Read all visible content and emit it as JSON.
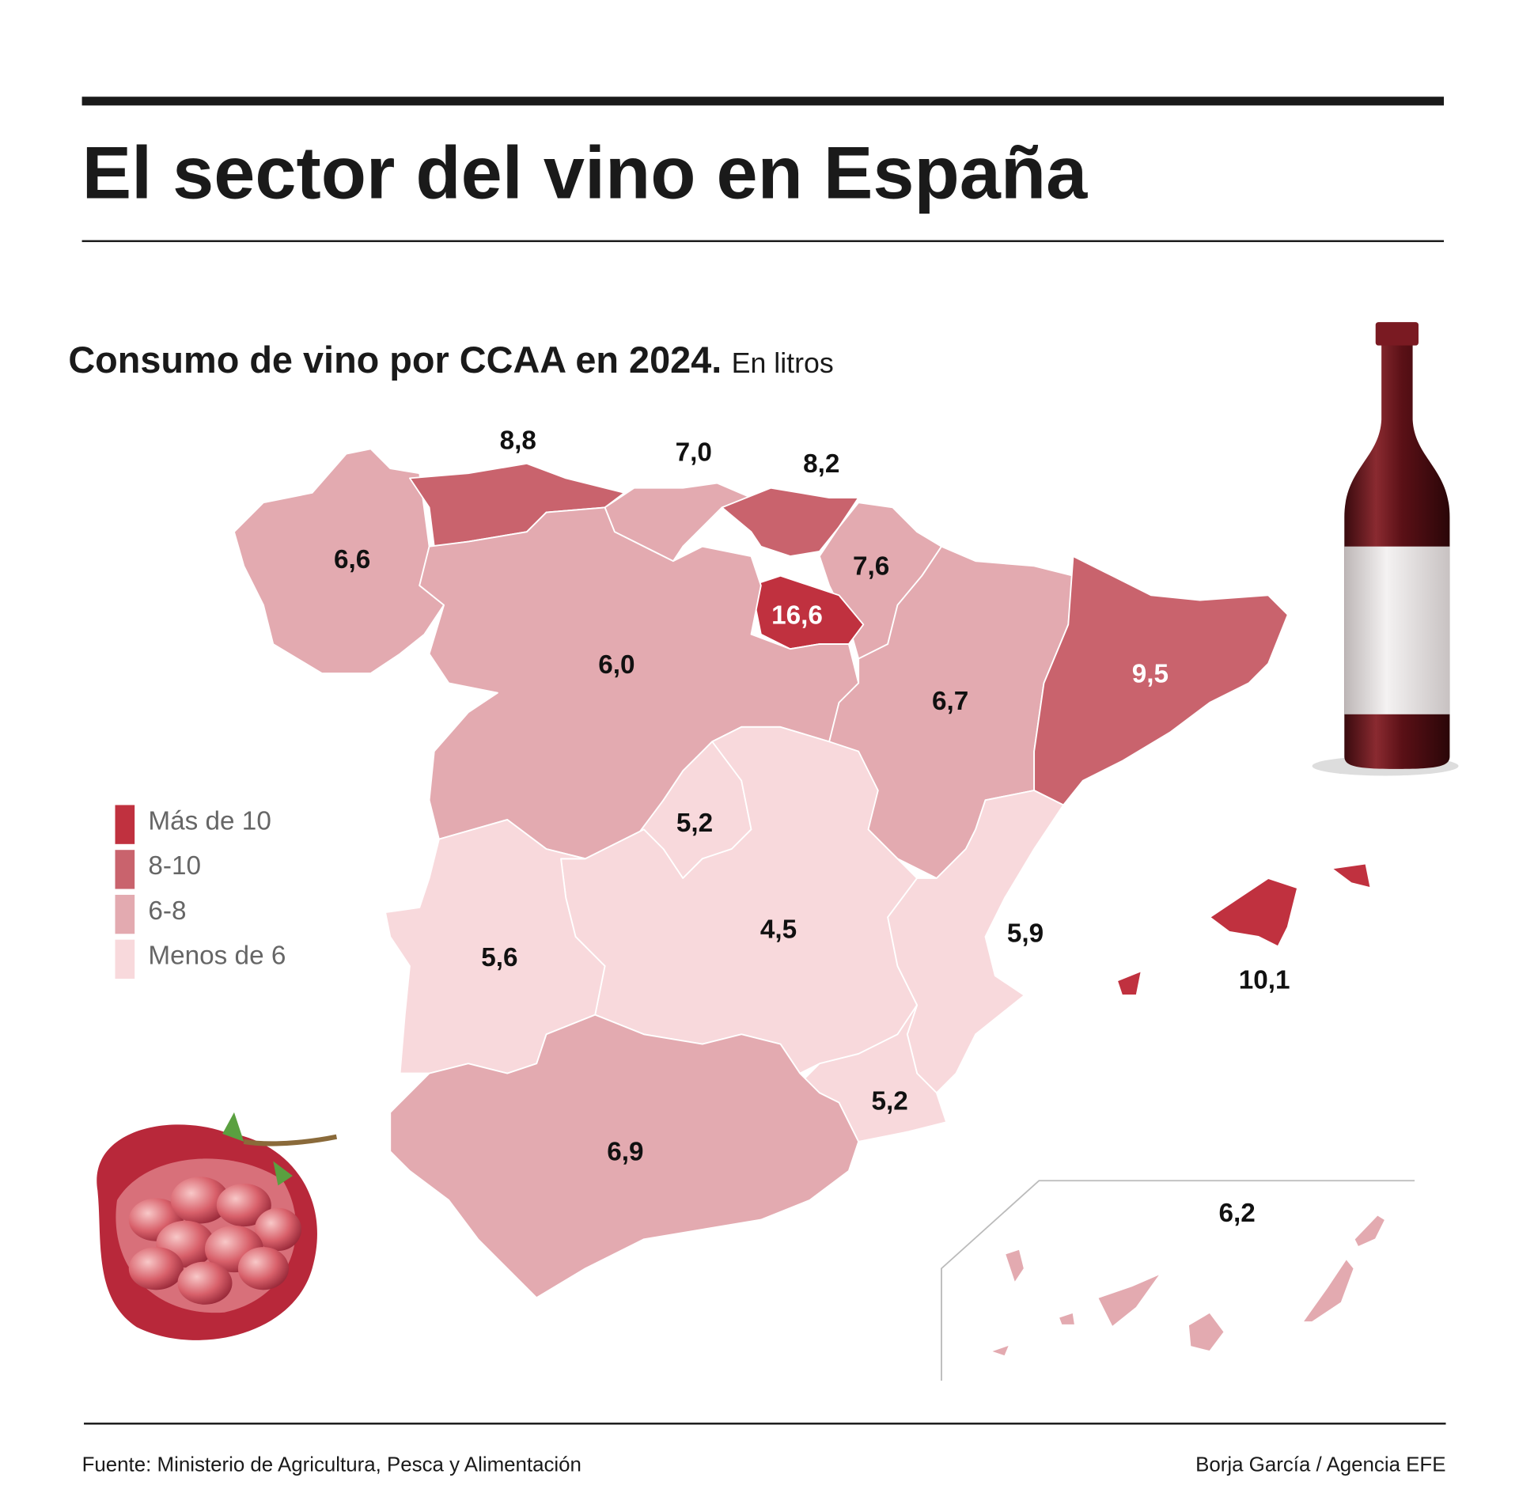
{
  "header": {
    "title": "El sector del vino en España"
  },
  "chart_data": {
    "type": "choropleth",
    "title": "Consumo de vino por CCAA en 2024.",
    "subtitle": "En litros",
    "values": [
      6.6,
      8.8,
      7.0,
      8.2,
      7.6,
      16.6,
      6.0,
      6.7,
      9.5,
      5.2,
      4.5,
      5.6,
      5.9,
      10.1,
      5.2,
      6.9,
      6.2
    ],
    "value_labels": [
      "6,6",
      "8,8",
      "7,0",
      "8,2",
      "7,6",
      "16,6",
      "6,0",
      "6,7",
      "9,5",
      "5,2",
      "4,5",
      "5,6",
      "5,9",
      "10,1",
      "5,2",
      "6,9",
      "6,2"
    ],
    "colors": [
      "#e3aab0",
      "#c9636d",
      "#e3aab0",
      "#c9636d",
      "#e3aab0",
      "#c0313f",
      "#e3aab0",
      "#e3aab0",
      "#c9636d",
      "#f8d9dc",
      "#f8d9dc",
      "#f8d9dc",
      "#f8d9dc",
      "#c0313f",
      "#f8d9dc",
      "#e3aab0",
      "#e3aab0"
    ],
    "legend": {
      "labels": [
        "Más de 10",
        "8-10",
        "6-8",
        "Menos de 6"
      ],
      "colors": [
        "#c0313f",
        "#c9636d",
        "#e3aab0",
        "#f8d9dc"
      ]
    }
  },
  "footer": {
    "source": "Fuente: Ministerio de Agricultura, Pesca y Alimentación",
    "credit": "Borja García / Agencia EFE"
  }
}
